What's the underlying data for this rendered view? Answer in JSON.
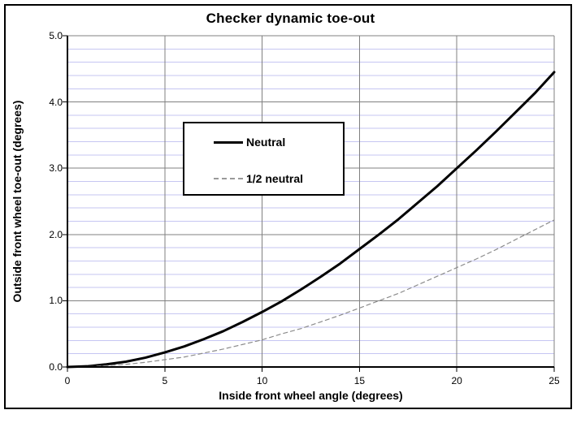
{
  "chart_data": {
    "type": "line",
    "title": "Checker dynamic toe-out",
    "xlabel": "Inside front wheel angle (degrees)",
    "ylabel": "Outside front wheel toe-out (degrees)",
    "xlim": [
      0,
      25
    ],
    "ylim": [
      0.0,
      5.0
    ],
    "x_ticks": [
      "0",
      "5",
      "10",
      "15",
      "20",
      "25"
    ],
    "x_tick_values": [
      0,
      5,
      10,
      15,
      20,
      25
    ],
    "y_ticks": [
      "0.0",
      "1.0",
      "2.0",
      "3.0",
      "4.0",
      "5.0"
    ],
    "y_tick_values": [
      0,
      1,
      2,
      3,
      4,
      5
    ],
    "y_minor_step": 0.2,
    "grid": {
      "major_color": "#808080",
      "minor_color": "#c6c6f2",
      "axis_color": "#000000",
      "plot_border_color": "#808080"
    },
    "legend_position": "upper-left-inside",
    "x": [
      0,
      1,
      2,
      3,
      4,
      5,
      6,
      7,
      8,
      9,
      10,
      11,
      12,
      13,
      14,
      15,
      16,
      17,
      18,
      19,
      20,
      21,
      22,
      23,
      24,
      25
    ],
    "series": [
      {
        "name": "Neutral",
        "style": "solid",
        "color": "#000000",
        "line_width": 3,
        "values": [
          0.0,
          0.01,
          0.04,
          0.08,
          0.14,
          0.22,
          0.31,
          0.42,
          0.54,
          0.68,
          0.83,
          0.99,
          1.17,
          1.36,
          1.56,
          1.78,
          2.0,
          2.23,
          2.48,
          2.73,
          3.0,
          3.27,
          3.55,
          3.84,
          4.13,
          4.45
        ]
      },
      {
        "name": "1/2 neutral",
        "style": "dashed",
        "color": "#8c8c8c",
        "line_width": 1.2,
        "values": [
          0.0,
          0.005,
          0.02,
          0.04,
          0.07,
          0.11,
          0.15,
          0.21,
          0.27,
          0.34,
          0.41,
          0.5,
          0.58,
          0.68,
          0.78,
          0.89,
          1.0,
          1.11,
          1.24,
          1.37,
          1.5,
          1.63,
          1.77,
          1.92,
          2.07,
          2.22
        ]
      }
    ]
  }
}
